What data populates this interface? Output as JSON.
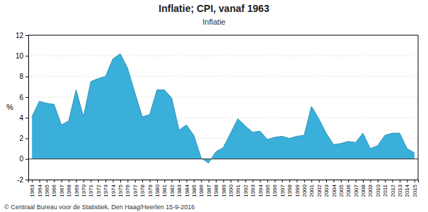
{
  "chart_data": {
    "type": "area",
    "title": "Inflatie; CPI, vanaf 1963",
    "subtitle": "Inflatie",
    "ylabel": "%",
    "footer": "© Centraal Bureau voor de Statistiek, Den Haag/Heerlen 15-9-2016",
    "color": "#3aafda",
    "grid": true,
    "x": [
      1963,
      1964,
      1965,
      1966,
      1967,
      1968,
      1969,
      1970,
      1971,
      1972,
      1973,
      1974,
      1975,
      1976,
      1977,
      1978,
      1979,
      1980,
      1981,
      1982,
      1983,
      1984,
      1985,
      1986,
      1987,
      1988,
      1989,
      1990,
      1991,
      1992,
      1993,
      1994,
      1995,
      1996,
      1997,
      1998,
      1999,
      2000,
      2001,
      2002,
      2003,
      2004,
      2005,
      2006,
      2007,
      2008,
      2009,
      2010,
      2011,
      2012,
      2013,
      2014,
      2015
    ],
    "values": [
      4.1,
      5.6,
      5.4,
      5.3,
      3.3,
      3.7,
      6.7,
      4.1,
      7.5,
      7.8,
      8.0,
      9.7,
      10.2,
      8.8,
      6.4,
      4.1,
      4.3,
      6.7,
      6.7,
      5.9,
      2.8,
      3.3,
      2.3,
      0.1,
      -0.4,
      0.7,
      1.1,
      2.5,
      3.9,
      3.2,
      2.6,
      2.7,
      1.9,
      2.1,
      2.2,
      2.0,
      2.2,
      2.3,
      5.1,
      3.9,
      2.5,
      1.4,
      1.5,
      1.7,
      1.6,
      2.5,
      1.0,
      1.3,
      2.3,
      2.5,
      2.5,
      1.0,
      0.6
    ],
    "xlim": [
      1962.5,
      2015.5
    ],
    "xticks": [
      1963,
      1964,
      1965,
      1966,
      1967,
      1968,
      1969,
      1970,
      1971,
      1972,
      1973,
      1974,
      1975,
      1976,
      1977,
      1978,
      1979,
      1980,
      1981,
      1982,
      1983,
      1984,
      1985,
      1986,
      1987,
      1988,
      1989,
      1990,
      1991,
      1992,
      1993,
      1994,
      1995,
      1996,
      1997,
      1998,
      1999,
      2000,
      2001,
      2002,
      2003,
      2004,
      2005,
      2006,
      2007,
      2008,
      2009,
      2010,
      2011,
      2012,
      2013,
      2014,
      2015
    ],
    "ylim": [
      -2,
      12
    ],
    "yticks": [
      -2,
      0,
      2,
      4,
      6,
      8,
      10,
      12
    ]
  }
}
